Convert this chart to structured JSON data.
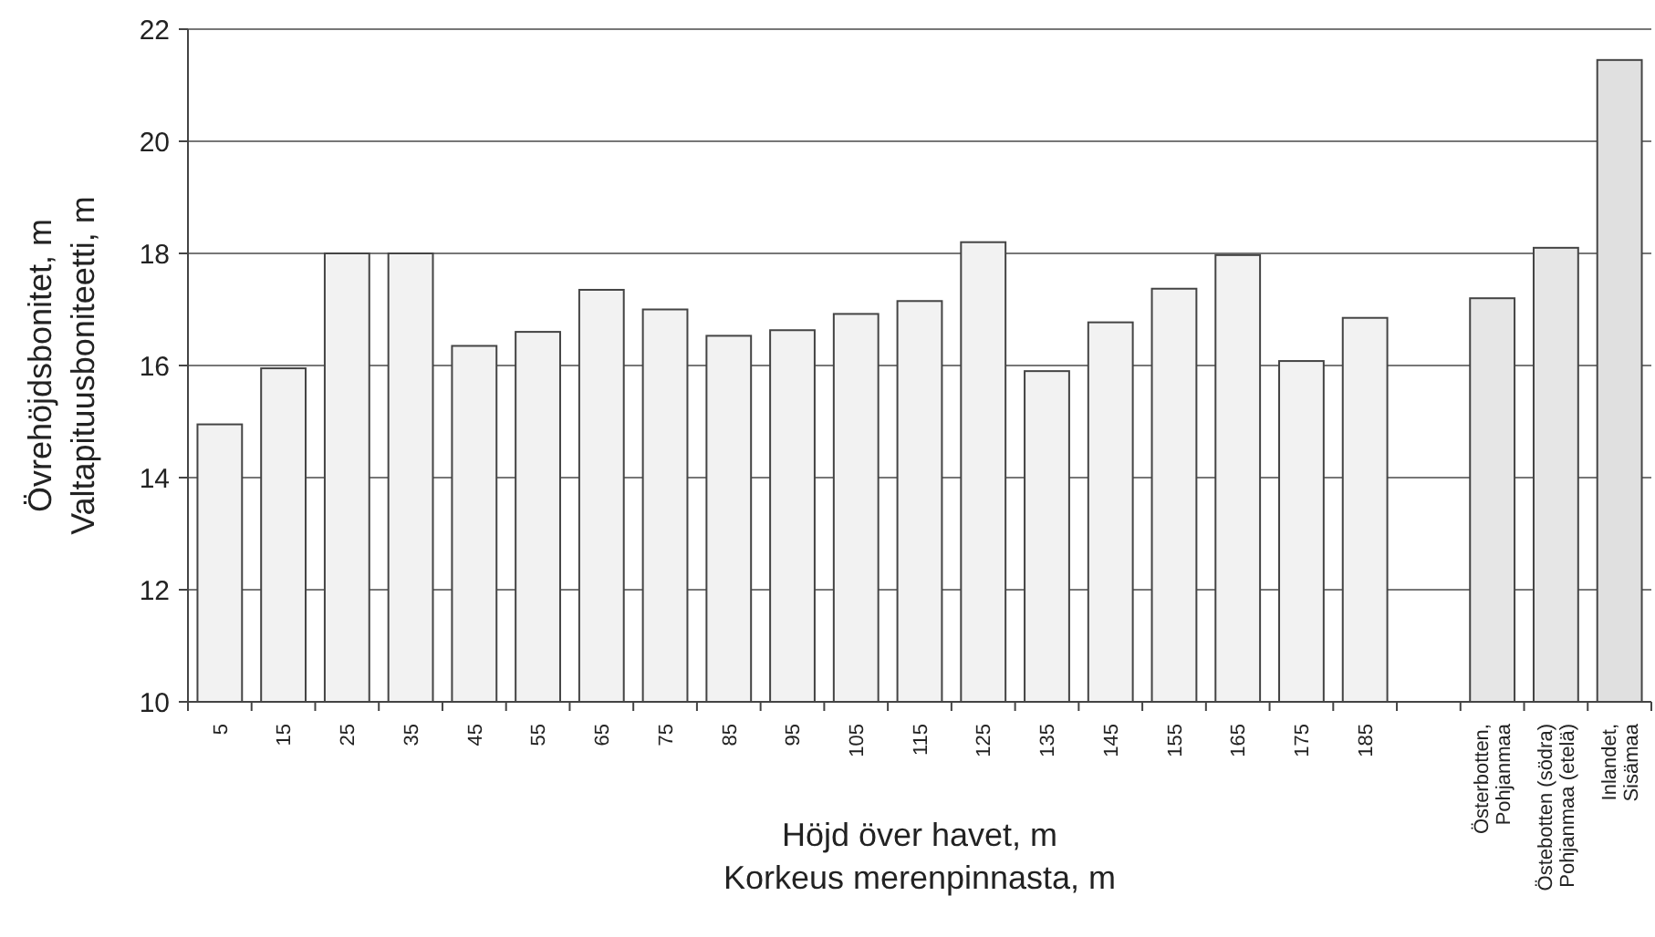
{
  "chart_data": {
    "type": "bar",
    "xlabel": "Höjd över havet, m\nKorkeus merenpinnasta, m",
    "ylabel": "Övrehöjdsbonitet, m\nValtapituusboniteetti, m",
    "categories": [
      "5",
      "15",
      "25",
      "35",
      "45",
      "55",
      "65",
      "75",
      "85",
      "95",
      "105",
      "115",
      "125",
      "135",
      "145",
      "155",
      "165",
      "175",
      "185",
      null,
      "Österbotten,\nPohjanmaa",
      "Östebotten (södra)\nPohjanmaa (etelä)",
      "Inlandet,\nSisämaa"
    ],
    "values": [
      14.95,
      15.95,
      18.0,
      18.0,
      16.35,
      16.6,
      17.35,
      17.0,
      16.53,
      16.63,
      16.92,
      17.15,
      18.2,
      15.9,
      16.77,
      17.37,
      17.97,
      16.08,
      16.85,
      null,
      17.2,
      18.1,
      21.45
    ],
    "colors": [
      "#f2f2f2",
      "#f2f2f2",
      "#f2f2f2",
      "#f2f2f2",
      "#f2f2f2",
      "#f2f2f2",
      "#f2f2f2",
      "#f2f2f2",
      "#f2f2f2",
      "#f2f2f2",
      "#f2f2f2",
      "#f2f2f2",
      "#f2f2f2",
      "#f2f2f2",
      "#f2f2f2",
      "#f2f2f2",
      "#f2f2f2",
      "#f2f2f2",
      "#f2f2f2",
      null,
      "#e6e6e6",
      "#e6e6e6",
      "#e0e0e0"
    ],
    "ylim": [
      10,
      22
    ],
    "yticks": [
      10,
      12,
      14,
      16,
      18,
      20,
      22
    ],
    "grid": "y"
  }
}
